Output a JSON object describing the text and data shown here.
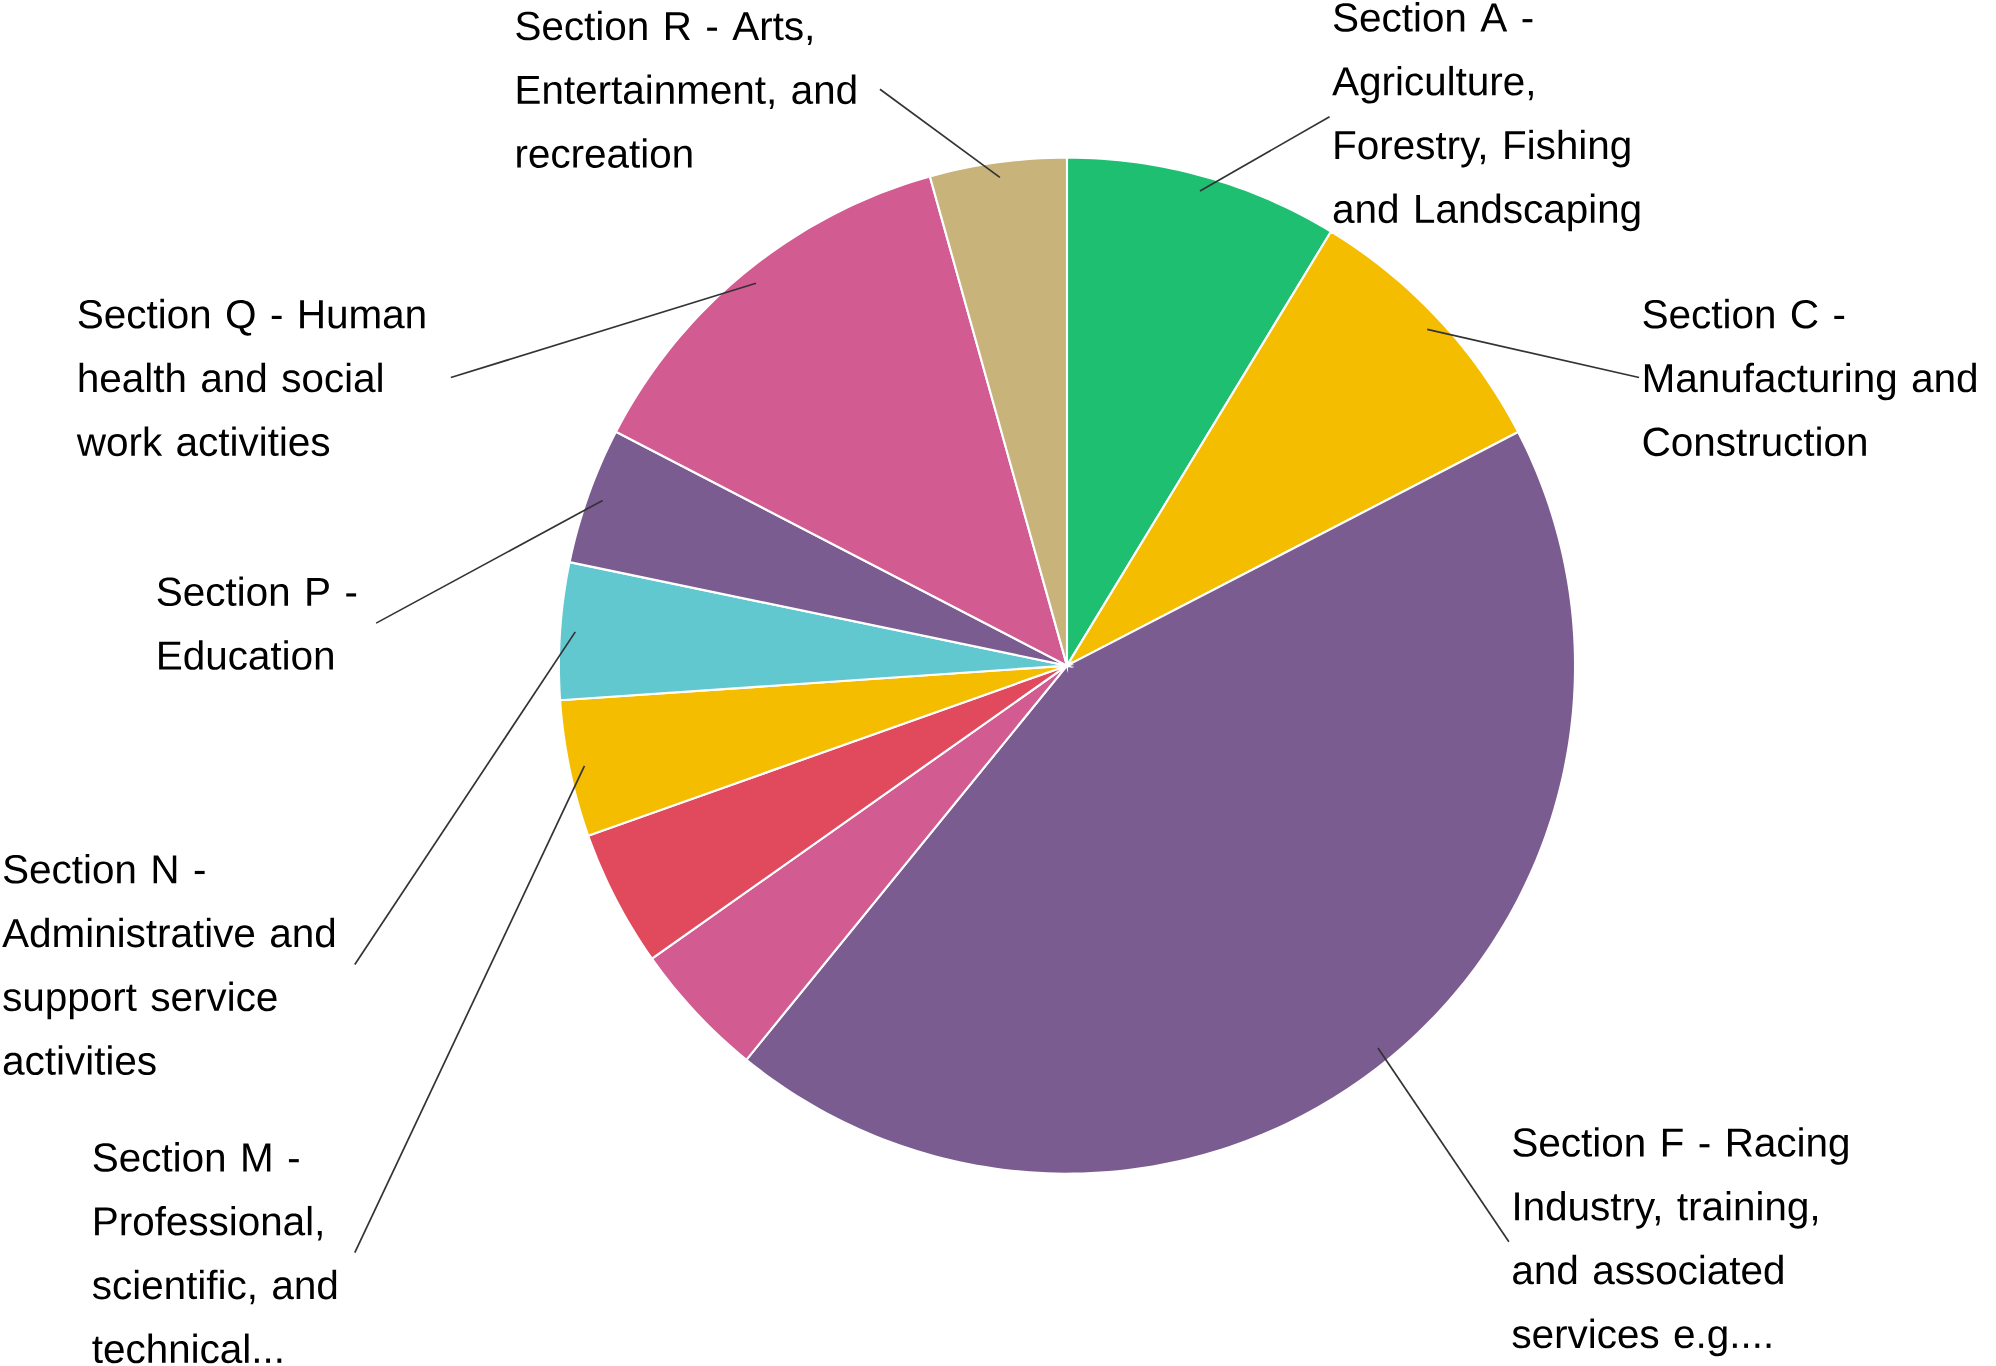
{
  "chart_data": {
    "type": "pie",
    "categories": [
      "Section A - Agriculture, Forestry, Fishing and Landscaping",
      "Section C - Manufacturing and Construction",
      "Section F - Racing Industry, training, and associated services e.g....",
      null,
      null,
      "Section M - Professional, scientific, and technical...",
      "Section N - Administrative and support service activities",
      "Section P - Education",
      "Section Q - Human health and social work activities",
      "Section R - Arts, Entertainment, and recreation"
    ],
    "values": [
      8.7,
      8.7,
      43.48,
      4.35,
      4.35,
      4.35,
      4.35,
      4.35,
      13.04,
      4.35
    ],
    "colors": [
      "#1fbf72",
      "#f5bd00",
      "#7b5c91",
      "#d25b92",
      "#e04a5c",
      "#f5bd00",
      "#62c8d0",
      "#7b5c91",
      "#d25b92",
      "#c8b47a"
    ]
  }
}
